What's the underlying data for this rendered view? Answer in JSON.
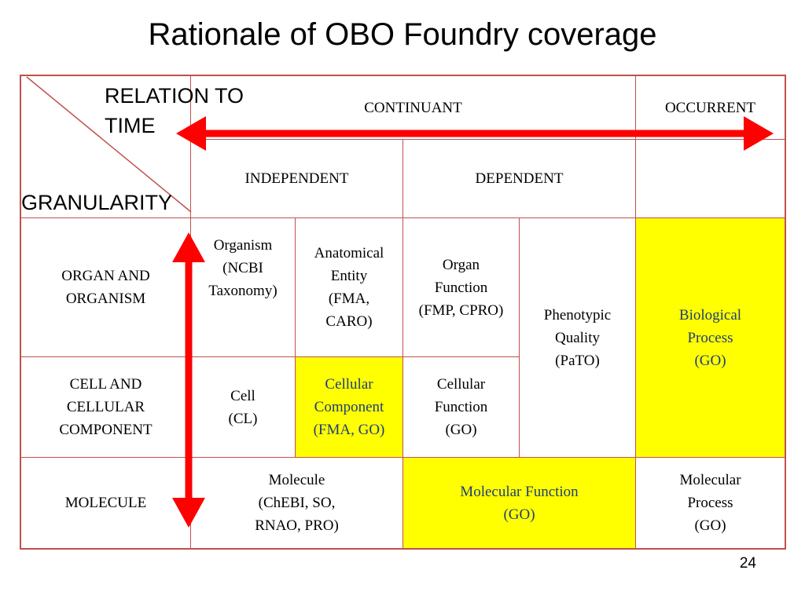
{
  "title": "Rationale of OBO Foundry coverage",
  "page_number": "24",
  "colors": {
    "border": "#c0504d",
    "highlight": "#ffff00",
    "arrow": "#ff0000",
    "highlight_text": "#1f3d7a"
  },
  "axis_labels": {
    "relation_to_time": "RELATION TO\nTIME",
    "granularity": "GRANULARITY"
  },
  "header": {
    "continuant": "CONTINUANT",
    "occurrent": "OCCURRENT",
    "independent": "INDEPENDENT",
    "dependent": "DEPENDENT"
  },
  "rows": {
    "organ": "ORGAN AND\nORGANISM",
    "cell": "CELL AND\nCELLULAR\nCOMPONENT",
    "molecule": "MOLECULE"
  },
  "cells": {
    "organism": "Organism\n(NCBI\nTaxonomy)",
    "anatomical_entity": "Anatomical\nEntity\n(FMA,\nCARO)",
    "organ_function": "Organ\nFunction\n(FMP, CPRO)",
    "phenotypic_quality": "Phenotypic\nQuality\n(PaTO)",
    "biological_process": "Biological\nProcess\n(GO)",
    "cell": "Cell\n(CL)",
    "cellular_component": "Cellular\nComponent\n(FMA, GO)",
    "cellular_function": "Cellular\nFunction\n(GO)",
    "molecule": "Molecule\n(ChEBI, SO,\nRNAO, PRO)",
    "molecular_function": "Molecular Function\n(GO)",
    "molecular_process": "Molecular\nProcess\n(GO)"
  }
}
